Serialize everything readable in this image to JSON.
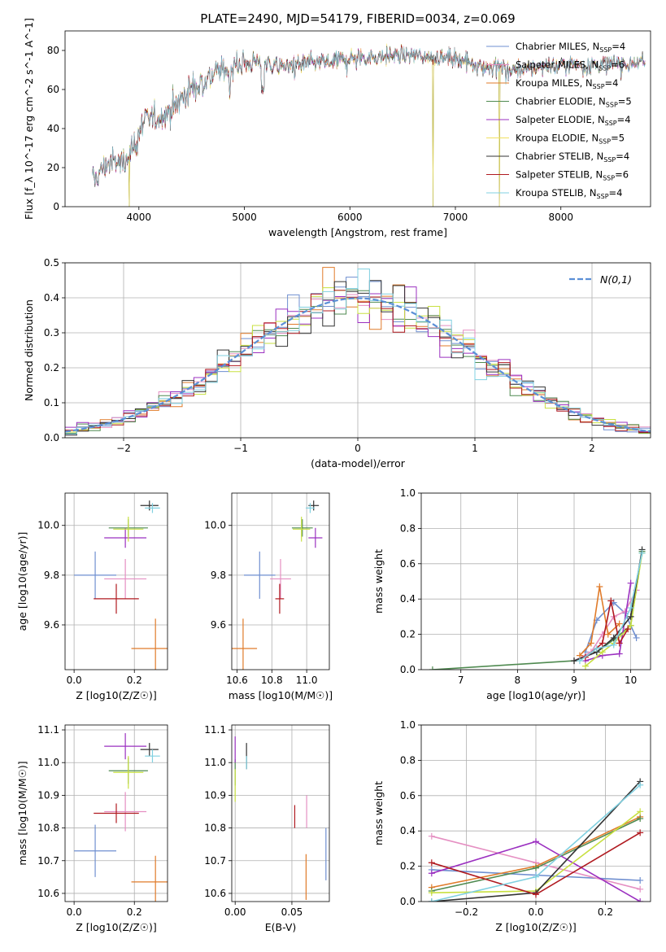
{
  "figure": {
    "title": "PLATE=2490, MJD=54179, FIBERID=0034, z=0.069"
  },
  "colors": {
    "Chabrier MILES": "#6f8fd0",
    "Salpeter MILES": "#e58fc2",
    "Kroupa MILES": "#e07b2a",
    "Chabrier ELODIE": "#4f8a50",
    "Salpeter ELODIE": "#9b30c0",
    "Kroupa ELODIE": "#f0e060",
    "Chabrier STELIB": "#333333",
    "Salpeter STELIB": "#b01a20",
    "Kroupa STELIB": "#80d0e0",
    "Kroupa ELODIE line": "#c8e040",
    "gaussian": "#5b8fd6"
  },
  "chart_data": [
    {
      "id": "spectrum",
      "type": "line",
      "title": "PLATE=2490, MJD=54179, FIBERID=0034, z=0.069",
      "xlabel": "wavelength [Angstrom, rest frame]",
      "ylabel": "Flux [f_λ 10^-17 erg cm^-2 s^-1 A^-1]",
      "xlim": [
        3300,
        8850
      ],
      "ylim": [
        0,
        90
      ],
      "xticks": [
        4000,
        5000,
        6000,
        7000,
        8000
      ],
      "yticks": [
        0,
        20,
        40,
        60,
        80
      ],
      "grid": false,
      "legend_position": "upper-right",
      "legend": [
        {
          "name": "Chabrier MILES",
          "nssp": "4"
        },
        {
          "name": "Salpeter MILES",
          "nssp": "6"
        },
        {
          "name": "Kroupa MILES",
          "nssp": "4"
        },
        {
          "name": "Chabrier ELODIE",
          "nssp": "5"
        },
        {
          "name": "Salpeter ELODIE",
          "nssp": "4"
        },
        {
          "name": "Kroupa ELODIE",
          "nssp": "5"
        },
        {
          "name": "Chabrier STELIB",
          "nssp": "4"
        },
        {
          "name": "Salpeter STELIB",
          "nssp": "6"
        },
        {
          "name": "Kroupa STELIB",
          "nssp": "4"
        }
      ],
      "continuum": {
        "x": [
          3560,
          3700,
          3850,
          3950,
          4050,
          4200,
          4300,
          4400,
          4500,
          4700,
          4900,
          5100,
          5300,
          5500,
          5700,
          6000,
          6300,
          6500,
          6700,
          7000,
          7300,
          7600,
          8000,
          8400,
          8800
        ],
        "y": [
          13,
          22,
          23,
          31,
          44,
          47,
          50,
          55,
          61,
          68,
          72,
          74,
          72,
          73,
          74,
          76,
          77,
          78,
          77,
          76,
          72,
          70,
          73,
          73,
          74
        ]
      },
      "drops": [
        {
          "x": 3910,
          "y": 0
        },
        {
          "x": 6790,
          "y": 0
        },
        {
          "x": 7420,
          "y": 0
        }
      ]
    },
    {
      "id": "residuals",
      "type": "histogram",
      "xlabel": "(data-model)/error",
      "ylabel": "Normed distribution",
      "xlim": [
        -2.5,
        2.5
      ],
      "ylim": [
        0,
        0.5
      ],
      "xticks": [
        -2,
        -1,
        0,
        1,
        2
      ],
      "yticks": [
        0.0,
        0.1,
        0.2,
        0.3,
        0.4,
        0.5
      ],
      "grid": true,
      "bin_width": 0.1,
      "legend_position": "upper-right",
      "legend": "N(0,1)"
    },
    {
      "id": "age_vs_Z",
      "type": "scatter",
      "xlabel": "Z [log10(Z/Z☉)]",
      "ylabel": "age [log10(age/yr)]",
      "xlim": [
        -0.03,
        0.31
      ],
      "ylim": [
        9.42,
        10.13
      ],
      "xticks": [
        0.0,
        0.2
      ],
      "yticks": [
        9.6,
        9.8,
        10.0
      ],
      "grid": true,
      "points": [
        {
          "model": "Chabrier MILES",
          "x": 0.07,
          "xerr": 0.07,
          "y": 9.8,
          "yerr": 0.095
        },
        {
          "model": "Salpeter MILES",
          "x": 0.17,
          "xerr": 0.07,
          "y": 9.785,
          "yerr": 0.08
        },
        {
          "model": "Kroupa MILES",
          "x": 0.27,
          "xerr": 0.08,
          "y": 9.505,
          "yerr": 0.12
        },
        {
          "model": "Chabrier ELODIE",
          "x": 0.18,
          "xerr": 0.065,
          "y": 9.99,
          "yerr": 0.035
        },
        {
          "model": "Salpeter ELODIE",
          "x": 0.17,
          "xerr": 0.07,
          "y": 9.95,
          "yerr": 0.04
        },
        {
          "model": "Kroupa ELODIE",
          "x": 0.18,
          "xerr": 0.05,
          "y": 9.985,
          "yerr": 0.05
        },
        {
          "model": "Chabrier STELIB",
          "x": 0.25,
          "xerr": 0.03,
          "y": 10.08,
          "yerr": 0.02
        },
        {
          "model": "Salpeter STELIB",
          "x": 0.14,
          "xerr": 0.075,
          "y": 9.705,
          "yerr": 0.06
        },
        {
          "model": "Kroupa STELIB",
          "x": 0.26,
          "xerr": 0.025,
          "y": 10.07,
          "yerr": 0.02
        }
      ]
    },
    {
      "id": "age_vs_mass",
      "type": "scatter",
      "xlabel": "mass [log10(M/M☉)]",
      "ylabel": "",
      "xlim": [
        10.57,
        11.13
      ],
      "ylim": [
        9.42,
        10.13
      ],
      "xticks": [
        10.6,
        10.8,
        11.0
      ],
      "yticks": [
        9.6,
        9.8,
        10.0
      ],
      "grid": true,
      "points": [
        {
          "model": "Chabrier MILES",
          "x": 10.73,
          "xerr": 0.09,
          "y": 9.8,
          "yerr": 0.095
        },
        {
          "model": "Salpeter MILES",
          "x": 10.85,
          "xerr": 0.06,
          "y": 9.785,
          "yerr": 0.08
        },
        {
          "model": "Kroupa MILES",
          "x": 10.635,
          "xerr": 0.08,
          "y": 9.505,
          "yerr": 0.12
        },
        {
          "model": "Chabrier ELODIE",
          "x": 10.975,
          "xerr": 0.06,
          "y": 9.99,
          "yerr": 0.035
        },
        {
          "model": "Salpeter ELODIE",
          "x": 11.05,
          "xerr": 0.04,
          "y": 9.95,
          "yerr": 0.04
        },
        {
          "model": "Kroupa ELODIE",
          "x": 10.97,
          "xerr": 0.05,
          "y": 9.985,
          "yerr": 0.05
        },
        {
          "model": "Chabrier STELIB",
          "x": 11.04,
          "xerr": 0.03,
          "y": 10.08,
          "yerr": 0.02
        },
        {
          "model": "Salpeter STELIB",
          "x": 10.845,
          "xerr": 0.025,
          "y": 9.705,
          "yerr": 0.06
        },
        {
          "model": "Kroupa STELIB",
          "x": 11.02,
          "xerr": 0.025,
          "y": 10.07,
          "yerr": 0.02
        }
      ]
    },
    {
      "id": "weight_vs_age",
      "type": "line",
      "xlabel": "age [log10(age/yr)]",
      "ylabel": "mass weight",
      "xlim": [
        6.3,
        10.35
      ],
      "ylim": [
        0,
        1.0
      ],
      "xticks": [
        7,
        8,
        9,
        10
      ],
      "yticks": [
        0.0,
        0.2,
        0.4,
        0.6,
        0.8,
        1.0
      ],
      "grid": true,
      "series": [
        {
          "model": "Chabrier MILES",
          "x": [
            9.2,
            9.4,
            9.7,
            9.9,
            10.1
          ],
          "y": [
            0.1,
            0.28,
            0.38,
            0.32,
            0.18
          ]
        },
        {
          "model": "Salpeter MILES",
          "x": [
            9.0,
            9.3,
            9.5,
            9.7,
            9.9,
            10.1
          ],
          "y": [
            0.05,
            0.1,
            0.2,
            0.3,
            0.33,
            0.45
          ]
        },
        {
          "model": "Kroupa MILES",
          "x": [
            9.1,
            9.3,
            9.45,
            9.6,
            9.8
          ],
          "y": [
            0.08,
            0.15,
            0.47,
            0.2,
            0.26
          ]
        },
        {
          "model": "Chabrier ELODIE",
          "x": [
            6.5,
            9.0,
            9.4,
            9.7,
            10.0,
            10.2
          ],
          "y": [
            0.0,
            0.05,
            0.1,
            0.17,
            0.25,
            0.67
          ]
        },
        {
          "model": "Salpeter ELODIE",
          "x": [
            9.2,
            9.5,
            9.8,
            10.0
          ],
          "y": [
            0.05,
            0.08,
            0.09,
            0.49
          ]
        },
        {
          "model": "Kroupa ELODIE",
          "x": [
            9.2,
            9.5,
            9.7,
            10.0,
            10.2
          ],
          "y": [
            0.02,
            0.1,
            0.15,
            0.25,
            0.66
          ]
        },
        {
          "model": "Chabrier STELIB",
          "x": [
            9.0,
            9.4,
            9.7,
            10.0,
            10.2
          ],
          "y": [
            0.05,
            0.1,
            0.18,
            0.3,
            0.68
          ]
        },
        {
          "model": "Salpeter STELIB",
          "x": [
            9.2,
            9.5,
            9.65,
            9.8,
            9.95
          ],
          "y": [
            0.07,
            0.15,
            0.39,
            0.15,
            0.23
          ]
        },
        {
          "model": "Kroupa STELIB",
          "x": [
            9.1,
            9.4,
            9.7,
            10.0,
            10.2
          ],
          "y": [
            0.05,
            0.12,
            0.14,
            0.35,
            0.66
          ]
        }
      ]
    },
    {
      "id": "mass_vs_Z",
      "type": "scatter",
      "xlabel": "Z [log10(Z/Z☉)]",
      "ylabel": "mass [log10(M/M☉)]",
      "xlim": [
        -0.03,
        0.31
      ],
      "ylim": [
        10.575,
        11.115
      ],
      "xticks": [
        0.0,
        0.2
      ],
      "yticks": [
        10.6,
        10.7,
        10.8,
        10.9,
        11.0,
        11.1
      ],
      "grid": true,
      "points": [
        {
          "model": "Chabrier MILES",
          "x": 0.07,
          "xerr": 0.07,
          "y": 10.73,
          "yerr": 0.08
        },
        {
          "model": "Salpeter MILES",
          "x": 0.17,
          "xerr": 0.07,
          "y": 10.85,
          "yerr": 0.06
        },
        {
          "model": "Kroupa MILES",
          "x": 0.27,
          "xerr": 0.08,
          "y": 10.635,
          "yerr": 0.08
        },
        {
          "model": "Chabrier ELODIE",
          "x": 0.18,
          "xerr": 0.065,
          "y": 10.975,
          "yerr": 0.04
        },
        {
          "model": "Salpeter ELODIE",
          "x": 0.17,
          "xerr": 0.07,
          "y": 11.05,
          "yerr": 0.04
        },
        {
          "model": "Kroupa ELODIE",
          "x": 0.18,
          "xerr": 0.05,
          "y": 10.97,
          "yerr": 0.05
        },
        {
          "model": "Chabrier STELIB",
          "x": 0.25,
          "xerr": 0.03,
          "y": 11.04,
          "yerr": 0.02
        },
        {
          "model": "Salpeter STELIB",
          "x": 0.14,
          "xerr": 0.075,
          "y": 10.845,
          "yerr": 0.03
        },
        {
          "model": "Kroupa STELIB",
          "x": 0.26,
          "xerr": 0.025,
          "y": 11.02,
          "yerr": 0.02
        }
      ]
    },
    {
      "id": "mass_vs_ebv",
      "type": "scatter",
      "xlabel": "E(B-V)",
      "ylabel": "",
      "xlim": [
        -0.003,
        0.083
      ],
      "ylim": [
        10.575,
        11.115
      ],
      "xticks": [
        0.0,
        0.05
      ],
      "yticks": [
        10.6,
        10.7,
        10.8,
        10.9,
        11.0,
        11.1
      ],
      "grid": true,
      "points": [
        {
          "model": "Chabrier MILES",
          "x": 0.08,
          "xerr": 0,
          "y": 10.72,
          "yerr": 0.08
        },
        {
          "model": "Salpeter MILES",
          "x": 0.063,
          "xerr": 0,
          "y": 10.85,
          "yerr": 0.05
        },
        {
          "model": "Kroupa MILES",
          "x": 0.0625,
          "xerr": 0,
          "y": 10.65,
          "yerr": 0.07
        },
        {
          "model": "Chabrier ELODIE",
          "x": 0.0,
          "xerr": 0,
          "y": 10.97,
          "yerr": 0.04
        },
        {
          "model": "Salpeter ELODIE",
          "x": 0.0,
          "xerr": 0,
          "y": 11.04,
          "yerr": 0.04
        },
        {
          "model": "Kroupa ELODIE",
          "x": 0.0,
          "xerr": 0,
          "y": 10.93,
          "yerr": 0.05
        },
        {
          "model": "Chabrier STELIB",
          "x": 0.01,
          "xerr": 0,
          "y": 11.02,
          "yerr": 0.04
        },
        {
          "model": "Salpeter STELIB",
          "x": 0.0525,
          "xerr": 0,
          "y": 10.835,
          "yerr": 0.035
        },
        {
          "model": "Kroupa STELIB",
          "x": 0.01,
          "xerr": 0,
          "y": 11.0,
          "yerr": 0.02
        }
      ]
    },
    {
      "id": "weight_vs_Z",
      "type": "line",
      "xlabel": "Z [log10(Z/Z☉)]",
      "ylabel": "mass weight",
      "xlim": [
        -0.33,
        0.33
      ],
      "ylim": [
        0,
        1.0
      ],
      "xticks": [
        -0.2,
        0.0,
        0.2
      ],
      "yticks": [
        0.0,
        0.2,
        0.4,
        0.6,
        0.8,
        1.0
      ],
      "grid": true,
      "series": [
        {
          "model": "Chabrier MILES",
          "x": [
            -0.3,
            0.0,
            0.3
          ],
          "y": [
            0.18,
            0.15,
            0.12
          ]
        },
        {
          "model": "Salpeter MILES",
          "x": [
            -0.3,
            0.0,
            0.3
          ],
          "y": [
            0.37,
            0.22,
            0.07
          ]
        },
        {
          "model": "Kroupa MILES",
          "x": [
            -0.3,
            0.0,
            0.3
          ],
          "y": [
            0.08,
            0.2,
            0.48
          ]
        },
        {
          "model": "Chabrier ELODIE",
          "x": [
            -0.3,
            0.0,
            0.3
          ],
          "y": [
            0.06,
            0.19,
            0.47
          ]
        },
        {
          "model": "Salpeter ELODIE",
          "x": [
            -0.3,
            0.0,
            0.3
          ],
          "y": [
            0.16,
            0.34,
            0.0
          ]
        },
        {
          "model": "Kroupa ELODIE",
          "x": [
            -0.3,
            0.0,
            0.3
          ],
          "y": [
            0.05,
            0.06,
            0.51
          ]
        },
        {
          "model": "Chabrier STELIB",
          "x": [
            -0.3,
            0.0,
            0.3
          ],
          "y": [
            0.0,
            0.05,
            0.68
          ]
        },
        {
          "model": "Salpeter STELIB",
          "x": [
            -0.3,
            0.0,
            0.3
          ],
          "y": [
            0.22,
            0.04,
            0.39
          ]
        },
        {
          "model": "Kroupa STELIB",
          "x": [
            -0.3,
            0.0,
            0.3
          ],
          "y": [
            0.0,
            0.14,
            0.66
          ]
        }
      ]
    }
  ]
}
